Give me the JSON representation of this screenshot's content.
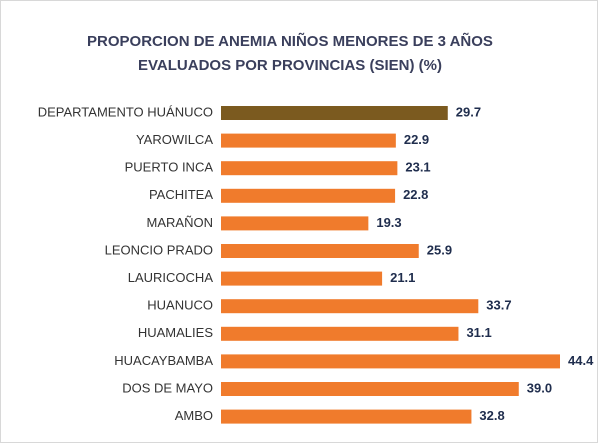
{
  "chart_data": {
    "type": "bar",
    "orientation": "horizontal",
    "title": "PROPORCION DE ANEMIA NIÑOS MENORES DE 3 AÑOS",
    "subtitle": "EVALUADOS POR PROVINCIAS  (SIEN)  (%)",
    "categories": [
      "DEPARTAMENTO HUÁNUCO",
      "YAROWILCA",
      "PUERTO INCA",
      "PACHITEA",
      "MARAÑON",
      "LEONCIO PRADO",
      "LAURICOCHA",
      "HUANUCO",
      "HUAMALIES",
      "HUACAYBAMBA",
      "DOS DE MAYO",
      "AMBO"
    ],
    "values": [
      29.7,
      22.9,
      23.1,
      22.8,
      19.3,
      25.9,
      21.1,
      33.7,
      31.1,
      44.4,
      39.0,
      32.8
    ],
    "value_labels": [
      "29.7",
      "22.9",
      "23.1",
      "22.8",
      "19.3",
      "25.9",
      "21.1",
      "33.7",
      "31.1",
      "44.4",
      "39.0",
      "32.8"
    ],
    "colors": [
      "#7b5a1f",
      "#f07b2c",
      "#f07b2c",
      "#f07b2c",
      "#f07b2c",
      "#f07b2c",
      "#f07b2c",
      "#f07b2c",
      "#f07b2c",
      "#f07b2c",
      "#f07b2c",
      "#f07b2c"
    ]
  }
}
